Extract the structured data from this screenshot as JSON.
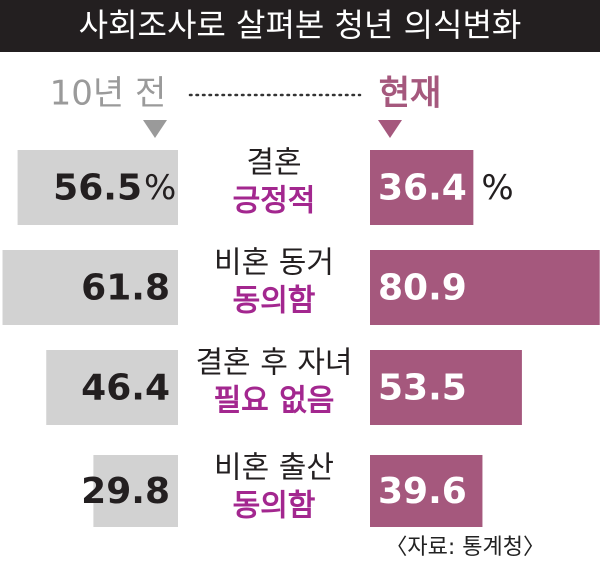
{
  "chart_data": {
    "type": "bar",
    "title": "사회조사로 살펴본 청년 의식변화",
    "categories": [
      [
        "결혼",
        "긍정적"
      ],
      [
        "비혼 동거",
        "동의함"
      ],
      [
        "결혼 후 자녀",
        "필요 없음"
      ],
      [
        "비혼 출산",
        "동의함"
      ]
    ],
    "series": [
      {
        "name": "10년 전",
        "color": "#d2d2d2",
        "values": [
          56.5,
          61.8,
          46.4,
          29.8
        ]
      },
      {
        "name": "현재",
        "color": "#a5587d",
        "values": [
          36.4,
          80.9,
          53.5,
          39.6
        ]
      }
    ],
    "unit": "%",
    "xlim": [
      0,
      81
    ],
    "source": "〈자료: 통계청〉"
  }
}
